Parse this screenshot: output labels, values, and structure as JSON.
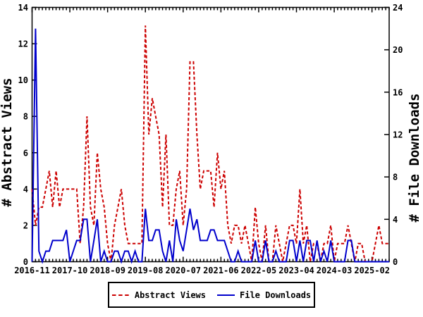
{
  "figure": {
    "background": "#ffffff",
    "frame_color": "#000000",
    "text_color": "#000000"
  },
  "chart_data": {
    "type": "line",
    "title": "",
    "grid": false,
    "x_start": "2016-11",
    "x_end": "2025-07",
    "x_axis": {
      "tick_labels": [
        "2016-11",
        "2017-10",
        "2018-09",
        "2019-08",
        "2020-07",
        "2021-06",
        "2022-05",
        "2023-04",
        "2024-03",
        "2025-02"
      ],
      "tick_month_indices": [
        0,
        11,
        22,
        33,
        44,
        55,
        66,
        77,
        88,
        99
      ],
      "minor_tick_every_months": 1
    },
    "left_axis": {
      "label": "# Abstract Views",
      "min": 0,
      "max": 14,
      "tick_step": 2,
      "tick_labels": [
        "0",
        "2",
        "4",
        "6",
        "8",
        "10",
        "12",
        "14"
      ]
    },
    "right_axis": {
      "label": "# File Downloads",
      "min": 0,
      "max": 24,
      "tick_step": 4,
      "tick_labels": [
        "0",
        "4",
        "8",
        "12",
        "16",
        "20",
        "24"
      ]
    },
    "series": [
      {
        "name": "Abstract Views",
        "axis": "left",
        "color": "#cc0000",
        "style": "dashed",
        "values": [
          4,
          2,
          3,
          3,
          4,
          5,
          3,
          5,
          3,
          4,
          4,
          4,
          4,
          4,
          1,
          3,
          8,
          3,
          2,
          6,
          4,
          3,
          1,
          0,
          2,
          3,
          4,
          2,
          1,
          1,
          1,
          1,
          1,
          13,
          7,
          9,
          8,
          7,
          3,
          7,
          2,
          2,
          4,
          5,
          2,
          4,
          11,
          11,
          7,
          4,
          5,
          5,
          5,
          3,
          6,
          4,
          5,
          2,
          1,
          2,
          2,
          1,
          2,
          1,
          0,
          3,
          1,
          0,
          2,
          0,
          0,
          2,
          1,
          0,
          1,
          2,
          2,
          1,
          4,
          1,
          2,
          0,
          1,
          1,
          0,
          1,
          1,
          2,
          0,
          1,
          1,
          1,
          2,
          1,
          0,
          1,
          1,
          0,
          0,
          0,
          1,
          2,
          1,
          1,
          1
        ]
      },
      {
        "name": "File Downloads",
        "axis": "right",
        "color": "#0000cc",
        "style": "solid",
        "values": [
          0,
          22,
          1,
          0,
          1,
          1,
          2,
          2,
          2,
          2,
          3,
          0,
          1,
          2,
          2,
          4,
          4,
          0,
          2,
          4,
          0,
          1,
          0,
          0,
          1,
          1,
          0,
          1,
          1,
          0,
          1,
          0,
          0,
          5,
          2,
          2,
          3,
          3,
          1,
          0,
          2,
          0,
          4,
          2,
          1,
          3,
          5,
          3,
          4,
          2,
          2,
          2,
          3,
          3,
          2,
          2,
          2,
          1,
          0,
          0,
          1,
          0,
          0,
          0,
          0,
          2,
          0,
          0,
          2,
          0,
          0,
          1,
          0,
          0,
          0,
          2,
          2,
          0,
          2,
          0,
          2,
          2,
          0,
          2,
          0,
          1,
          0,
          2,
          0,
          0,
          0,
          0,
          2,
          2,
          0,
          0,
          0,
          0,
          0,
          0,
          0,
          0,
          0,
          0,
          0
        ]
      }
    ],
    "legend_position": "bottom-center"
  },
  "legend": {
    "entries": [
      {
        "label": "Abstract Views",
        "color": "#cc0000",
        "line_style": "dashed"
      },
      {
        "label": "File Downloads",
        "color": "#0000cc",
        "line_style": "solid"
      }
    ]
  }
}
